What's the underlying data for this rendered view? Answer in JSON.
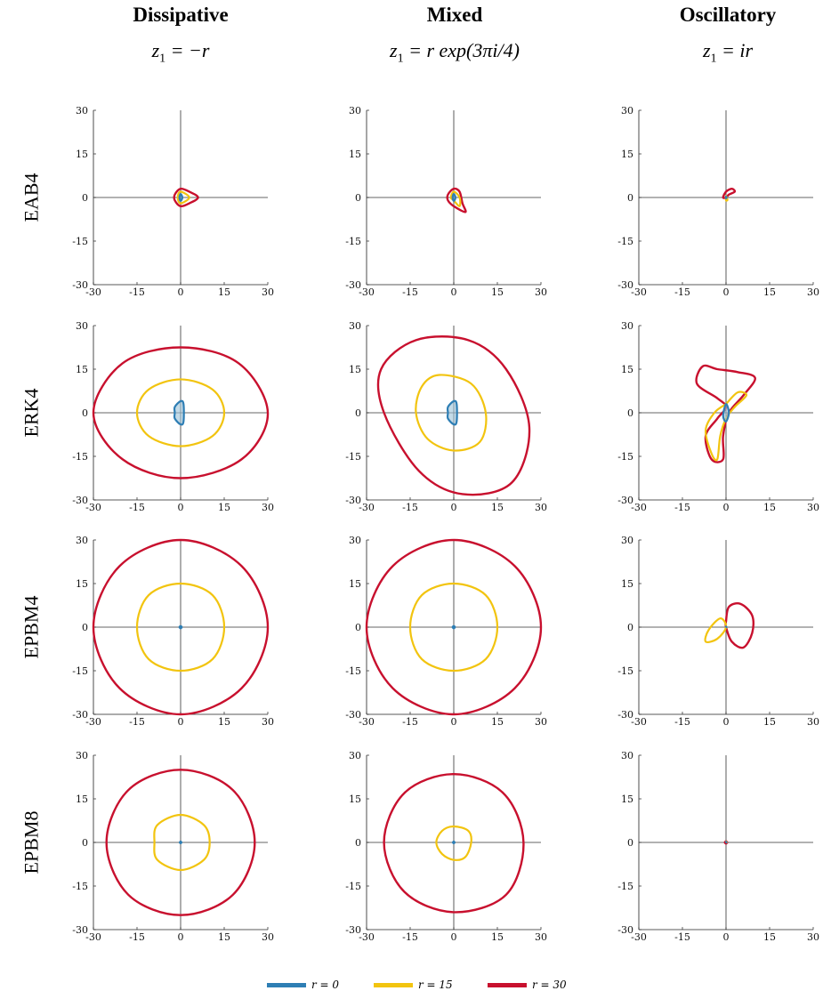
{
  "columns": [
    {
      "title": "Dissipative",
      "formula": "z",
      "formula_sub": "1",
      "formula_rest": " = −r"
    },
    {
      "title": "Mixed",
      "formula": "z",
      "formula_sub": "1",
      "formula_rest": " = r exp(3πi/4)"
    },
    {
      "title": "Oscillatory",
      "formula": "z",
      "formula_sub": "1",
      "formula_rest": " = ir"
    }
  ],
  "rows": [
    "EAB4",
    "ERK4",
    "EPBM4",
    "EPBM8"
  ],
  "legend": [
    {
      "label": "r = 0",
      "color": "#2E7EB4"
    },
    {
      "label": "r = 15",
      "color": "#F2C40F"
    },
    {
      "label": "r = 30",
      "color": "#C8102E"
    }
  ],
  "chart_data": {
    "type": "scatter",
    "description_of_panels": "Grid of 4 methods x 3 eigenvalue regimes; each panel shows stability region boundaries in the complex plane",
    "xlim": [
      -30,
      30
    ],
    "ylim": [
      -30,
      30
    ],
    "xticks": [
      -30,
      -15,
      0,
      15,
      30
    ],
    "yticks": [
      -30,
      -15,
      0,
      15,
      30
    ],
    "series_colors": {
      "r0": "#2E7EB4",
      "r15": "#F2C40F",
      "r30": "#C8102E"
    },
    "panels": [
      [
        {
          "r0": [
            [
              0,
              1.2
            ],
            [
              0.6,
              0
            ],
            [
              0,
              -1.2
            ],
            [
              -0.4,
              0
            ]
          ],
          "r15": [
            [
              0,
              2
            ],
            [
              3,
              0
            ],
            [
              0,
              -2
            ],
            [
              -1,
              0
            ]
          ],
          "r30": [
            [
              0,
              3
            ],
            [
              3,
              2
            ],
            [
              6,
              0
            ],
            [
              3,
              -2
            ],
            [
              0,
              -3
            ],
            [
              -2,
              -1
            ],
            [
              -2,
              1
            ]
          ]
        },
        {
          "r0": [
            [
              0,
              1.2
            ],
            [
              0.6,
              0
            ],
            [
              0,
              -1.2
            ],
            [
              -0.4,
              0
            ]
          ],
          "r15": [
            [
              0,
              2
            ],
            [
              2,
              0
            ],
            [
              2,
              -3
            ],
            [
              0,
              -1
            ],
            [
              -1,
              0
            ]
          ],
          "r30": [
            [
              0,
              3
            ],
            [
              2,
              2
            ],
            [
              3,
              -2
            ],
            [
              4,
              -5
            ],
            [
              0,
              -3
            ],
            [
              -2,
              -1
            ],
            [
              -2,
              1
            ]
          ]
        },
        {
          "r0": [
            [
              0,
              0.3
            ],
            [
              0.2,
              0
            ],
            [
              0,
              -0.3
            ]
          ],
          "r15": [
            [
              0,
              0.5
            ],
            [
              0.5,
              -0.8
            ],
            [
              0,
              -1
            ]
          ],
          "r30": [
            [
              -1,
              0
            ],
            [
              0,
              2
            ],
            [
              2,
              3
            ],
            [
              3,
              2
            ],
            [
              1,
              1
            ],
            [
              0,
              0
            ]
          ]
        }
      ],
      [
        {
          "r0": [
            [
              0,
              4
            ],
            [
              1,
              3
            ],
            [
              1,
              -3
            ],
            [
              0,
              -4
            ],
            [
              -2,
              -2
            ],
            [
              -2,
              0
            ],
            [
              -2,
              2
            ]
          ],
          "r15": [
            [
              0,
              11.5
            ],
            [
              11,
              8
            ],
            [
              15,
              0
            ],
            [
              11,
              -8
            ],
            [
              0,
              -11.5
            ],
            [
              -11,
              -8
            ],
            [
              -15,
              0
            ],
            [
              -11,
              8
            ]
          ],
          "r30": [
            [
              0,
              22.5
            ],
            [
              20,
              17
            ],
            [
              30,
              0
            ],
            [
              21,
              -16
            ],
            [
              0,
              -22.5
            ],
            [
              -20,
              -16
            ],
            [
              -30,
              0
            ],
            [
              -20,
              17
            ]
          ]
        },
        {
          "r0": [
            [
              0,
              4
            ],
            [
              1,
              3
            ],
            [
              1,
              -3
            ],
            [
              0,
              -4
            ],
            [
              -2,
              -2
            ],
            [
              -2,
              0
            ],
            [
              -2,
              2
            ]
          ],
          "r15": [
            [
              -5,
              13
            ],
            [
              6,
              10
            ],
            [
              11,
              0
            ],
            [
              9,
              -10
            ],
            [
              0,
              -13
            ],
            [
              -9,
              -9
            ],
            [
              -13,
              0
            ],
            [
              -11,
              9
            ]
          ],
          "r30": [
            [
              -13,
              25
            ],
            [
              5,
              25
            ],
            [
              18,
              15
            ],
            [
              26,
              -5
            ],
            [
              20,
              -24
            ],
            [
              3,
              -28
            ],
            [
              -12,
              -20
            ],
            [
              -24,
              0
            ],
            [
              -25,
              15
            ]
          ]
        },
        {
          "r0": [
            [
              0,
              3
            ],
            [
              1,
              0
            ],
            [
              0,
              -3
            ],
            [
              -1,
              -1
            ]
          ],
          "r15": [
            [
              0,
              3
            ],
            [
              4,
              7
            ],
            [
              7,
              6
            ],
            [
              3,
              2
            ],
            [
              0,
              -2
            ],
            [
              -2,
              -8
            ],
            [
              -3,
              -16
            ],
            [
              -5,
              -14
            ],
            [
              -7,
              -6
            ],
            [
              -4,
              0
            ],
            [
              0,
              3
            ]
          ],
          "r30": [
            [
              -3,
              15
            ],
            [
              4,
              14
            ],
            [
              10,
              12
            ],
            [
              6,
              6
            ],
            [
              1,
              0
            ],
            [
              -1,
              -8
            ],
            [
              -1,
              -16
            ],
            [
              -5,
              -16
            ],
            [
              -7,
              -8
            ],
            [
              -3,
              -2
            ],
            [
              0,
              2
            ],
            [
              -3,
              5
            ],
            [
              -10,
              10
            ],
            [
              -8,
              16
            ]
          ]
        }
      ],
      [
        {
          "r0": [
            [
              0,
              0.4
            ],
            [
              0.4,
              0
            ],
            [
              0,
              -0.4
            ],
            [
              -0.4,
              0
            ]
          ],
          "r15": [
            [
              0,
              15
            ],
            [
              11,
              11
            ],
            [
              15,
              0
            ],
            [
              11,
              -11
            ],
            [
              0,
              -15
            ],
            [
              -11,
              -11
            ],
            [
              -15,
              0
            ],
            [
              -11,
              11
            ]
          ],
          "r30": [
            [
              0,
              30
            ],
            [
              21,
              21
            ],
            [
              30,
              0
            ],
            [
              21,
              -21
            ],
            [
              0,
              -30
            ],
            [
              -21,
              -21
            ],
            [
              -30,
              0
            ],
            [
              -21,
              21
            ]
          ]
        },
        {
          "r0": [
            [
              0,
              0.4
            ],
            [
              0.4,
              0
            ],
            [
              0,
              -0.4
            ],
            [
              -0.4,
              0
            ]
          ],
          "r15": [
            [
              0,
              15
            ],
            [
              11,
              11
            ],
            [
              15,
              0
            ],
            [
              11,
              -11
            ],
            [
              0,
              -15
            ],
            [
              -11,
              -11
            ],
            [
              -15,
              0
            ],
            [
              -11,
              11
            ]
          ],
          "r30": [
            [
              0,
              30
            ],
            [
              21,
              21
            ],
            [
              30,
              0
            ],
            [
              21,
              -21
            ],
            [
              0,
              -30
            ],
            [
              -21,
              -21
            ],
            [
              -30,
              0
            ],
            [
              -21,
              21
            ]
          ]
        },
        {
          "r0": [
            [
              0,
              0.2
            ],
            [
              0.2,
              0
            ]
          ],
          "r15": [
            [
              -7,
              -5
            ],
            [
              -6,
              -1
            ],
            [
              -2,
              3
            ],
            [
              0,
              0
            ],
            [
              -3,
              -4
            ]
          ],
          "r30": [
            [
              0,
              2
            ],
            [
              1,
              7
            ],
            [
              5,
              8
            ],
            [
              9,
              4
            ],
            [
              9,
              -2
            ],
            [
              6,
              -7
            ],
            [
              2,
              -5
            ],
            [
              0,
              0
            ]
          ]
        }
      ],
      [
        {
          "r0": [
            [
              0,
              0.3
            ],
            [
              0.3,
              0
            ],
            [
              0,
              -0.3
            ],
            [
              -0.3,
              0
            ]
          ],
          "r15": [
            [
              0,
              9.5
            ],
            [
              8,
              6
            ],
            [
              10,
              0
            ],
            [
              8,
              -6
            ],
            [
              0,
              -9.5
            ],
            [
              -8,
              -6
            ],
            [
              -9,
              0
            ],
            [
              -8,
              6
            ]
          ],
          "r30": [
            [
              0,
              25
            ],
            [
              18,
              18
            ],
            [
              25.5,
              0
            ],
            [
              18,
              -18
            ],
            [
              0,
              -25
            ],
            [
              -18,
              -18
            ],
            [
              -25.5,
              0
            ],
            [
              -18,
              18
            ]
          ]
        },
        {
          "r0": [
            [
              0,
              0.3
            ],
            [
              0.3,
              0
            ],
            [
              0,
              -0.3
            ],
            [
              -0.3,
              0
            ]
          ],
          "r15": [
            [
              0,
              5.5
            ],
            [
              5,
              4
            ],
            [
              6,
              0
            ],
            [
              4,
              -5
            ],
            [
              0,
              -6
            ],
            [
              -4,
              -4
            ],
            [
              -6,
              0
            ],
            [
              -4,
              4
            ]
          ],
          "r30": [
            [
              0,
              23.5
            ],
            [
              17,
              17
            ],
            [
              24,
              0
            ],
            [
              18,
              -18
            ],
            [
              0,
              -24
            ],
            [
              -17,
              -17
            ],
            [
              -24,
              0
            ],
            [
              -17,
              17
            ]
          ]
        },
        {
          "r0": [
            [
              0,
              0.2
            ],
            [
              0.2,
              0
            ]
          ],
          "r15": [
            [
              0,
              0.3
            ],
            [
              0.3,
              0
            ]
          ],
          "r30": [
            [
              0,
              0.4
            ],
            [
              0.4,
              0
            ],
            [
              0,
              -0.4
            ],
            [
              -0.4,
              0
            ]
          ]
        }
      ]
    ]
  }
}
